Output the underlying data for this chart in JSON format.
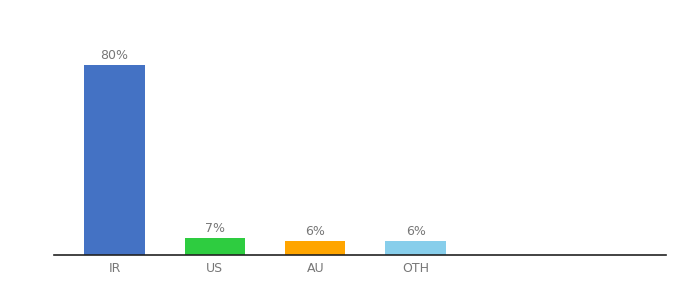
{
  "categories": [
    "IR",
    "US",
    "AU",
    "OTH"
  ],
  "values": [
    80,
    7,
    6,
    6
  ],
  "labels": [
    "80%",
    "7%",
    "6%",
    "6%"
  ],
  "bar_colors": [
    "#4472C4",
    "#2ECC40",
    "#FFA500",
    "#87CEEB"
  ],
  "background_color": "#ffffff",
  "ylim": [
    0,
    92
  ],
  "label_fontsize": 9,
  "tick_fontsize": 9,
  "bar_width": 0.6
}
